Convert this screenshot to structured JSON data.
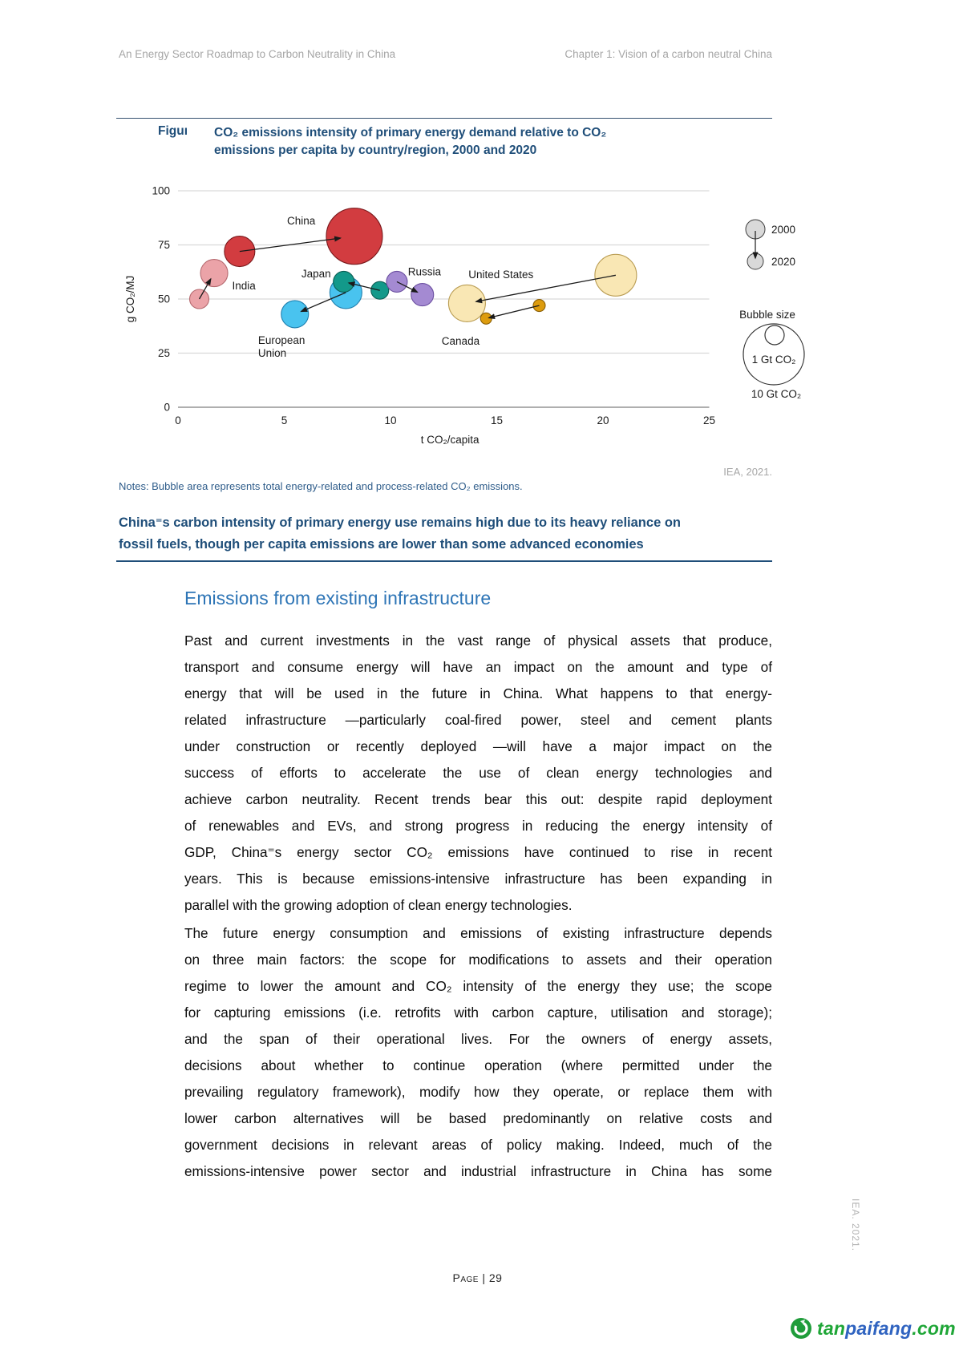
{
  "page": {
    "header_left": "An Energy Sector Roadmap to Carbon Neutrality in China",
    "header_right": "Chapter 1: Vision of a carbon neutral China",
    "footer": "Page | 29",
    "side_credit": "IEA. 2021."
  },
  "figure": {
    "label": "Figuı",
    "title_line1": "CO₂ emissions intensity of primary energy demand relative to CO₂",
    "title_line2": "emissions per capita by country/region, 2000 and 2020",
    "credit": "IEA, 2021.",
    "notes": "Notes: Bubble area represents total energy-related and process-related CO₂ emissions.",
    "key_message_line1": "China⁼s carbon intensity of primary energy use remains high due to its heavy reliance on",
    "key_message_line2": "fossil fuels, though per capita emissions are lower than some advanced economies"
  },
  "chart_data": {
    "type": "scatter",
    "title": "CO2 emissions intensity of primary energy demand relative to CO2 emissions per capita by country/region, 2000 and 2020",
    "xlabel": "t CO₂/capita",
    "ylabel": "g CO₂/MJ",
    "xlim": [
      0,
      25
    ],
    "ylim": [
      0,
      100
    ],
    "xticks": [
      "0",
      "5",
      "10",
      "15",
      "20",
      "25"
    ],
    "yticks": [
      "0",
      "25",
      "50",
      "75",
      "100"
    ],
    "grid": "horizontal gridlines at y = 25, 50, 75, 100",
    "bubble_note": "bubble area represents total CO2 emissions; arrow points from 2000 to 2020",
    "legend": {
      "year_start": "2000",
      "year_end": "2020",
      "bubble_size_title": "Bubble size",
      "bubble_small_label": "1 Gt CO₂",
      "bubble_large_label": "10 Gt CO₂",
      "gray_fill": "#d9d9d9"
    },
    "series": [
      {
        "name": "European Union",
        "color": "#49c3ef",
        "stroke": "#1f7fae",
        "y2000": {
          "x": 7.9,
          "y": 53,
          "r": 20
        },
        "y2020": {
          "x": 5.5,
          "y": 43,
          "r": 17
        },
        "label_lines": [
          "European",
          "Union"
        ],
        "label_xy": [
          3.77,
          30.7
        ],
        "label_anchor": "start"
      },
      {
        "name": "United States",
        "color": "#f9e7b4",
        "stroke": "#b99c52",
        "y2000": {
          "x": 20.6,
          "y": 61,
          "r": 26
        },
        "y2020": {
          "x": 13.6,
          "y": 48,
          "r": 23
        },
        "label_xy": [
          15.2,
          61.2
        ],
        "label_anchor": "middle"
      },
      {
        "name": "Canada",
        "color": "#dd9c0e",
        "stroke": "#8a5f06",
        "y2000": {
          "x": 17.0,
          "y": 47,
          "r": 7.5
        },
        "y2020": {
          "x": 14.5,
          "y": 41,
          "r": 7
        },
        "label_xy": [
          13.3,
          30.4
        ],
        "label_anchor": "middle"
      },
      {
        "name": "Japan",
        "color": "#13998a",
        "stroke": "#0b5e54",
        "y2000": {
          "x": 9.5,
          "y": 54,
          "r": 11
        },
        "y2020": {
          "x": 7.8,
          "y": 58,
          "r": 13
        },
        "label_xy": [
          6.5,
          61.5
        ],
        "label_anchor": "middle"
      },
      {
        "name": "Russia",
        "color": "#a48ad2",
        "stroke": "#6b4fa0",
        "y2000": {
          "x": 10.3,
          "y": 58,
          "r": 13
        },
        "y2020": {
          "x": 11.5,
          "y": 52,
          "r": 14
        },
        "label_xy": [
          11.6,
          62.5
        ],
        "label_anchor": "middle"
      },
      {
        "name": "India",
        "color": "#eba3a8",
        "stroke": "#b5686e",
        "y2000": {
          "x": 1.0,
          "y": 50,
          "r": 12
        },
        "y2020": {
          "x": 1.7,
          "y": 62,
          "r": 17
        },
        "label_xy": [
          3.1,
          56
        ],
        "label_anchor": "middle"
      },
      {
        "name": "China",
        "color": "#d23c40",
        "stroke": "#7a191c",
        "y2000": {
          "x": 2.9,
          "y": 72,
          "r": 19
        },
        "y2020": {
          "x": 8.3,
          "y": 79,
          "r": 35
        },
        "label_xy": [
          5.8,
          86
        ],
        "label_anchor": "middle"
      }
    ]
  },
  "section": {
    "heading": "Emissions from existing infrastructure",
    "paragraph1_lines": [
      "Past and current investments in the vast range of physical assets that produce,",
      "transport and consume energy will have an impact on the amount and type of",
      "energy that will be used in the future in China. What happens to that energy-",
      "related infrastructure —particularly coal-fired power, steel and cement plants",
      "under construction or recently deployed —will have a major impact on the",
      "success of efforts to accelerate the use of clean energy technologies and",
      "achieve carbon neutrality. Recent trends bear this out: despite rapid deployment",
      "of renewables and EVs, and strong progress in reducing the energy intensity of",
      "GDP, China⁼s energy sector CO₂ emissions have continued to rise in recent",
      "years. This is because emissions-intensive infrastructure has been expanding in",
      "parallel with the growing adoption of clean energy technologies."
    ],
    "paragraph2_lines": [
      "The future energy consumption and emissions of existing infrastructure depends",
      "on three main factors: the scope for modifications to assets and their operation",
      "regime to lower the amount and CO₂ intensity of the energy they use; the scope",
      "for capturing emissions (i.e. retrofits with carbon capture, utilisation and storage);",
      "and the span of their operational lives. For the owners of energy assets,",
      "decisions about whether to continue operation (where permitted under the",
      "prevailing regulatory framework), modify how they operate, or replace them with",
      "lower carbon alternatives will be based predominantly on relative costs and",
      "government decisions in relevant areas of policy making. Indeed, much of the",
      "emissions-intensive power sector and industrial infrastructure in China has some"
    ]
  },
  "logo": {
    "green1": "tan",
    "blue": "paifang",
    "green2": ".com",
    "green_hex": "#1fa637",
    "blue_hex": "#2f63c0"
  }
}
